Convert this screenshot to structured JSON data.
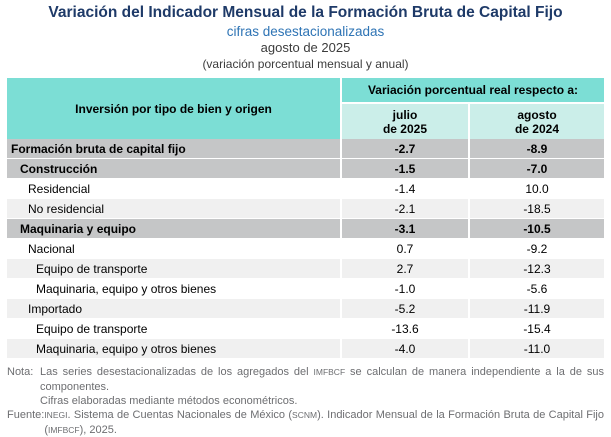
{
  "header": {
    "title": "Variación del Indicador Mensual de la Formación Bruta de Capital Fijo",
    "subtitle": "cifras desestacionalizadas",
    "period": "agosto de 2025",
    "measure": "(variación porcentual mensual y anual)"
  },
  "table": {
    "row_header": "Inversión por tipo de bien y origen",
    "group_header": "Variación porcentual real respecto a:",
    "col_julio": {
      "line1": "julio",
      "line2": "de 2025"
    },
    "col_agosto": {
      "line1": "agosto",
      "line2": "de 2024"
    },
    "rows": [
      {
        "label": "Formación bruta de capital fijo",
        "julio": "-2.7",
        "agosto": "-8.9",
        "bold": true,
        "level": 0,
        "bg": "strong"
      },
      {
        "label": "Construcción",
        "julio": "-1.5",
        "agosto": "-7.0",
        "bold": true,
        "level": 1,
        "bg": "strong"
      },
      {
        "label": "Residencial",
        "julio": "-1.4",
        "agosto": "10.0",
        "bold": false,
        "level": 2,
        "bg": "white"
      },
      {
        "label": "No residencial",
        "julio": "-2.1",
        "agosto": "-18.5",
        "bold": false,
        "level": 2,
        "bg": "light"
      },
      {
        "label": "Maquinaria y equipo",
        "julio": "-3.1",
        "agosto": "-10.5",
        "bold": true,
        "level": 1,
        "bg": "strong"
      },
      {
        "label": "Nacional",
        "julio": "0.7",
        "agosto": "-9.2",
        "bold": false,
        "level": 2,
        "bg": "white"
      },
      {
        "label": "Equipo de transporte",
        "julio": "2.7",
        "agosto": "-12.3",
        "bold": false,
        "level": 3,
        "bg": "light"
      },
      {
        "label": "Maquinaria, equipo y otros bienes",
        "julio": "-1.0",
        "agosto": "-5.6",
        "bold": false,
        "level": 3,
        "bg": "white"
      },
      {
        "label": "Importado",
        "julio": "-5.2",
        "agosto": "-11.9",
        "bold": false,
        "level": 2,
        "bg": "light"
      },
      {
        "label": "Equipo de transporte",
        "julio": "-13.6",
        "agosto": "-15.4",
        "bold": false,
        "level": 3,
        "bg": "white"
      },
      {
        "label": "Maquinaria, equipo y otros bienes",
        "julio": "-4.0",
        "agosto": "-11.0",
        "bold": false,
        "level": 3,
        "bg": "light"
      }
    ]
  },
  "notes": {
    "nota_label": "Nota:",
    "nota_paragraphs": [
      [
        {
          "t": "Las series desestacionalizadas de los agregados del "
        },
        {
          "t": "IMFBCF",
          "small": true
        },
        {
          "t": " se calculan de manera independiente a la de sus componentes."
        }
      ],
      [
        {
          "t": "Cifras elaboradas mediante métodos econométricos."
        }
      ]
    ],
    "fuente_label": "Fuente:",
    "fuente_paragraphs": [
      [
        {
          "t": "INEGI",
          "small": true
        },
        {
          "t": ". Sistema de Cuentas Nacionales de México ("
        },
        {
          "t": "SCNM",
          "small": true
        },
        {
          "t": "). Indicador Mensual de la Formación Bruta de Capital Fijo ("
        },
        {
          "t": "IMFBCF",
          "small": true
        },
        {
          "t": "), 2025."
        }
      ]
    ]
  },
  "colors": {
    "header_teal": "#7CDED5",
    "subheader_teal": "#CBEEE9",
    "strong_row_gray": "#C5C6C7",
    "alt_row_gray": "#F0F0F0",
    "title_navy": "#1E3A68",
    "subtitle_blue": "#2E74B5",
    "note_gray": "#6D6E71"
  }
}
